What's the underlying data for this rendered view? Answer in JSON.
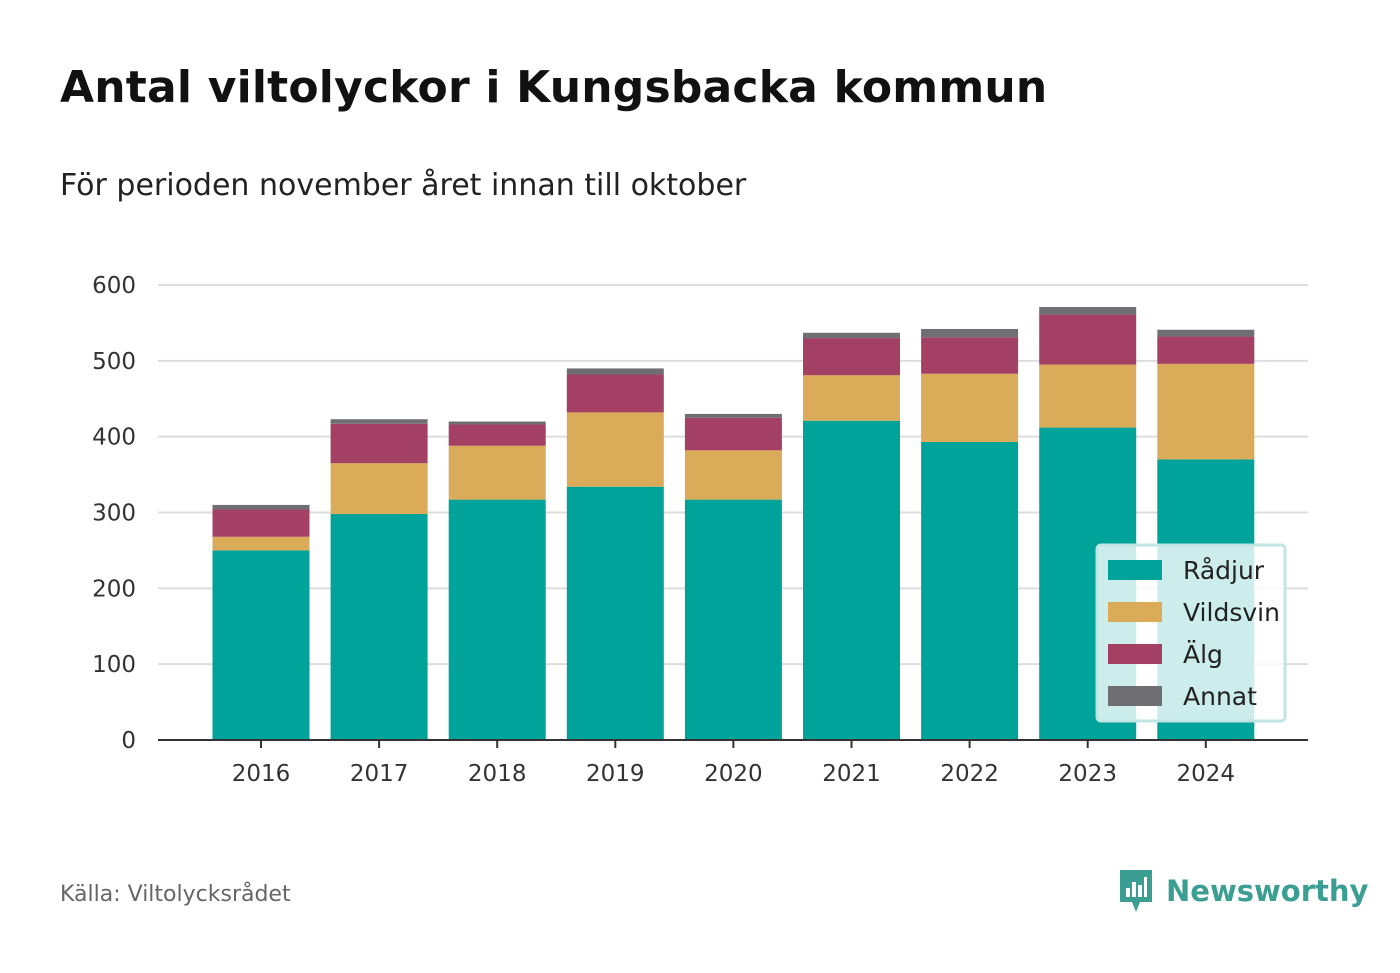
{
  "title": "Antal viltolyckor i Kungsbacka kommun",
  "subtitle": "För perioden november året innan till oktober",
  "source": "Källa: Viltolycksrådet",
  "brand": {
    "name": "Newsworthy",
    "icon": "newsworthy-logo-icon",
    "color": "#3b9e93"
  },
  "chart_data": {
    "type": "bar",
    "stacked": true,
    "title": "Antal viltolyckor i Kungsbacka kommun",
    "subtitle": "För perioden november året innan till oktober",
    "categories": [
      "2016",
      "2017",
      "2018",
      "2019",
      "2020",
      "2021",
      "2022",
      "2023",
      "2024"
    ],
    "series": [
      {
        "name": "Rådjur",
        "color": "#00a39a",
        "values": [
          250,
          298,
          317,
          334,
          317,
          421,
          393,
          412,
          370
        ]
      },
      {
        "name": "Vildsvin",
        "color": "#daab59",
        "values": [
          18,
          67,
          71,
          98,
          65,
          60,
          90,
          83,
          126
        ]
      },
      {
        "name": "Älg",
        "color": "#a54065",
        "values": [
          36,
          52,
          28,
          50,
          43,
          49,
          48,
          66,
          36
        ]
      },
      {
        "name": "Annat",
        "color": "#6e6e73",
        "values": [
          6,
          6,
          4,
          8,
          5,
          7,
          11,
          10,
          9
        ]
      }
    ],
    "y_ticks": [
      "0",
      "100",
      "200",
      "300",
      "400",
      "500",
      "600"
    ],
    "ylim": [
      0,
      600
    ],
    "grid": true,
    "legend_position": "bottom-right"
  }
}
